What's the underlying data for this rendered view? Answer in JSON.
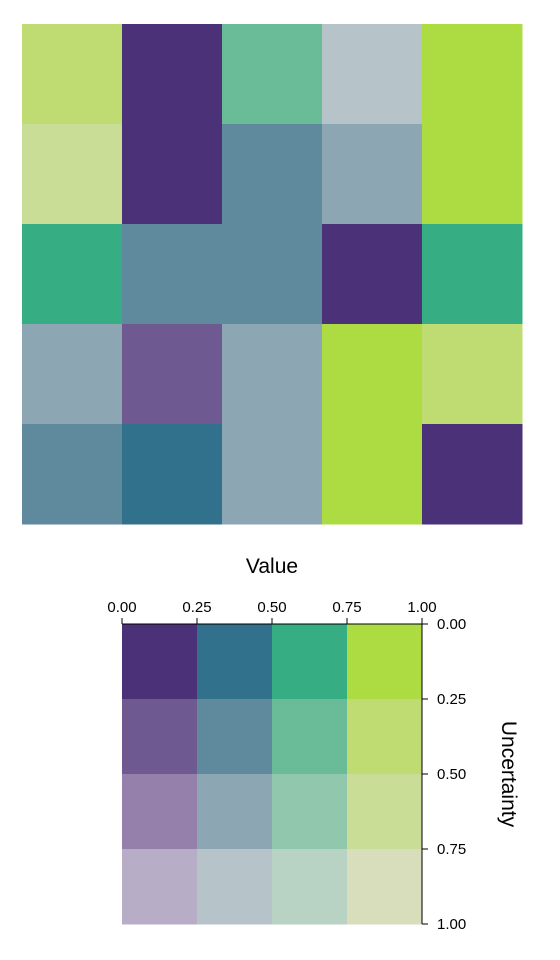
{
  "chart_data": [
    {
      "type": "heatmap",
      "rows": 5,
      "cols": 5,
      "cells": [
        [
          {
            "value": 0.85,
            "uncertainty": 0.35
          },
          {
            "value": 0.05,
            "uncertainty": 0.05
          },
          {
            "value": 0.6,
            "uncertainty": 0.35
          },
          {
            "value": 0.45,
            "uncertainty": 0.85
          },
          {
            "value": 0.9,
            "uncertainty": 0.1
          }
        ],
        [
          {
            "value": 0.85,
            "uncertainty": 0.6
          },
          {
            "value": 0.05,
            "uncertainty": 0.05
          },
          {
            "value": 0.35,
            "uncertainty": 0.35
          },
          {
            "value": 0.35,
            "uncertainty": 0.6
          },
          {
            "value": 0.9,
            "uncertainty": 0.1
          }
        ],
        [
          {
            "value": 0.6,
            "uncertainty": 0.1
          },
          {
            "value": 0.35,
            "uncertainty": 0.35
          },
          {
            "value": 0.35,
            "uncertainty": 0.35
          },
          {
            "value": 0.05,
            "uncertainty": 0.05
          },
          {
            "value": 0.6,
            "uncertainty": 0.1
          }
        ],
        [
          {
            "value": 0.35,
            "uncertainty": 0.6
          },
          {
            "value": 0.1,
            "uncertainty": 0.35
          },
          {
            "value": 0.35,
            "uncertainty": 0.6
          },
          {
            "value": 0.9,
            "uncertainty": 0.1
          },
          {
            "value": 0.85,
            "uncertainty": 0.35
          }
        ],
        [
          {
            "value": 0.35,
            "uncertainty": 0.35
          },
          {
            "value": 0.35,
            "uncertainty": 0.1
          },
          {
            "value": 0.35,
            "uncertainty": 0.6
          },
          {
            "value": 0.9,
            "uncertainty": 0.1
          },
          {
            "value": 0.05,
            "uncertainty": 0.05
          }
        ]
      ]
    },
    {
      "type": "heatmap",
      "role": "legend",
      "xlabel": "Value",
      "ylabel": "Uncertainty",
      "x_ticks": [
        "0.00",
        "0.25",
        "0.50",
        "0.75",
        "1.00"
      ],
      "y_ticks": [
        "0.00",
        "0.25",
        "0.50",
        "0.75",
        "1.00"
      ],
      "xlim": [
        0,
        1
      ],
      "ylim": [
        0,
        1
      ],
      "palette": [
        [
          "#4a3178",
          "#32718c",
          "#36ad83",
          "#addc42"
        ],
        [
          "#6e5990",
          "#5f8a9e",
          "#6abb98",
          "#bedc71"
        ],
        [
          "#957fab",
          "#8ca7b3",
          "#91c7ac",
          "#cadd96"
        ],
        [
          "#b7adc7",
          "#b6c4c9",
          "#b8d3c3",
          "#d8ddbb"
        ]
      ]
    }
  ]
}
